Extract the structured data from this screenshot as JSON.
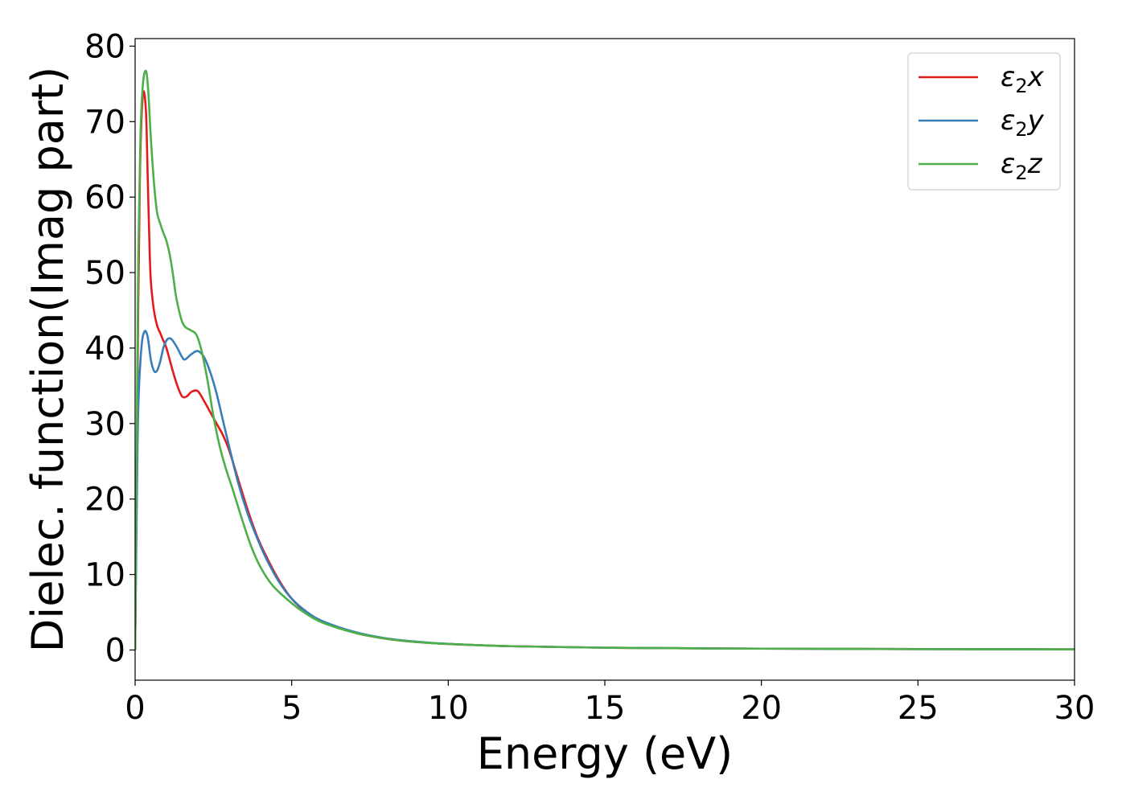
{
  "chart_data": {
    "type": "line",
    "xlabel": "Energy (eV)",
    "ylabel": "Dielec. function(Imag part)",
    "xlim": [
      0,
      30
    ],
    "ylim": [
      -4,
      81
    ],
    "xticks": [
      "0",
      "5",
      "10",
      "15",
      "20",
      "25",
      "30"
    ],
    "yticks": [
      "0",
      "10",
      "20",
      "30",
      "40",
      "50",
      "60",
      "70",
      "80"
    ],
    "grid": false,
    "legend_position": "top-right",
    "series": [
      {
        "name": "ε₂x",
        "legend_main": "ε",
        "legend_sub": "2",
        "legend_var": "x",
        "color": "#e41a1c",
        "points": [
          [
            0,
            0
          ],
          [
            0.05,
            22
          ],
          [
            0.1,
            46
          ],
          [
            0.15,
            62
          ],
          [
            0.2,
            70
          ],
          [
            0.27,
            74
          ],
          [
            0.35,
            71
          ],
          [
            0.4,
            63
          ],
          [
            0.45,
            55
          ],
          [
            0.5,
            49
          ],
          [
            0.6,
            45
          ],
          [
            0.7,
            43
          ],
          [
            0.8,
            42
          ],
          [
            0.9,
            41
          ],
          [
            1.0,
            40
          ],
          [
            1.2,
            37
          ],
          [
            1.35,
            35
          ],
          [
            1.5,
            33.6
          ],
          [
            1.65,
            33.6
          ],
          [
            1.8,
            34.2
          ],
          [
            2.0,
            34.3
          ],
          [
            2.2,
            33
          ],
          [
            2.4,
            31.5
          ],
          [
            2.6,
            30
          ],
          [
            2.8,
            28.5
          ],
          [
            3.0,
            26.5
          ],
          [
            3.3,
            22.5
          ],
          [
            3.6,
            18.5
          ],
          [
            3.9,
            15
          ],
          [
            4.2,
            12.3
          ],
          [
            4.6,
            9.2
          ],
          [
            5.0,
            6.8
          ],
          [
            5.5,
            4.9
          ],
          [
            6.0,
            3.7
          ],
          [
            7.0,
            2.3
          ],
          [
            8.0,
            1.5
          ],
          [
            9.0,
            1.05
          ],
          [
            10.0,
            0.8
          ],
          [
            12.0,
            0.5
          ],
          [
            15.0,
            0.3
          ],
          [
            20.0,
            0.18
          ],
          [
            25.0,
            0.12
          ],
          [
            30.0,
            0.08
          ]
        ]
      },
      {
        "name": "ε₂y",
        "legend_main": "ε",
        "legend_sub": "2",
        "legend_var": "y",
        "color": "#377eb8",
        "points": [
          [
            0,
            0
          ],
          [
            0.05,
            18
          ],
          [
            0.1,
            32
          ],
          [
            0.2,
            40
          ],
          [
            0.3,
            42.2
          ],
          [
            0.4,
            41.5
          ],
          [
            0.5,
            38.5
          ],
          [
            0.6,
            37
          ],
          [
            0.7,
            37
          ],
          [
            0.8,
            38.2
          ],
          [
            0.9,
            40
          ],
          [
            1.0,
            41
          ],
          [
            1.1,
            41.3
          ],
          [
            1.2,
            41
          ],
          [
            1.35,
            40
          ],
          [
            1.5,
            38.8
          ],
          [
            1.6,
            38.5
          ],
          [
            1.8,
            39.2
          ],
          [
            2.0,
            39.6
          ],
          [
            2.2,
            38.8
          ],
          [
            2.4,
            36.8
          ],
          [
            2.6,
            34
          ],
          [
            2.8,
            30.5
          ],
          [
            3.0,
            27
          ],
          [
            3.3,
            22
          ],
          [
            3.6,
            18
          ],
          [
            3.9,
            14.8
          ],
          [
            4.2,
            12
          ],
          [
            4.6,
            9
          ],
          [
            5.0,
            6.8
          ],
          [
            5.5,
            5
          ],
          [
            6.0,
            3.8
          ],
          [
            7.0,
            2.4
          ],
          [
            8.0,
            1.55
          ],
          [
            9.0,
            1.1
          ],
          [
            10.0,
            0.82
          ],
          [
            12.0,
            0.5
          ],
          [
            15.0,
            0.3
          ],
          [
            20.0,
            0.18
          ],
          [
            25.0,
            0.12
          ],
          [
            30.0,
            0.08
          ]
        ]
      },
      {
        "name": "ε₂z",
        "legend_main": "ε",
        "legend_sub": "2",
        "legend_var": "z",
        "color": "#4daf4a",
        "points": [
          [
            0,
            0
          ],
          [
            0.05,
            25
          ],
          [
            0.1,
            52
          ],
          [
            0.17,
            68
          ],
          [
            0.25,
            75
          ],
          [
            0.35,
            76.7
          ],
          [
            0.42,
            74
          ],
          [
            0.5,
            68
          ],
          [
            0.6,
            62
          ],
          [
            0.7,
            58
          ],
          [
            0.8,
            56.5
          ],
          [
            0.9,
            55.3
          ],
          [
            1.0,
            54.2
          ],
          [
            1.1,
            52.5
          ],
          [
            1.2,
            50
          ],
          [
            1.3,
            47
          ],
          [
            1.4,
            45
          ],
          [
            1.5,
            43.5
          ],
          [
            1.6,
            42.8
          ],
          [
            1.8,
            42.3
          ],
          [
            1.95,
            41.8
          ],
          [
            2.1,
            40
          ],
          [
            2.3,
            36
          ],
          [
            2.5,
            31
          ],
          [
            2.7,
            27
          ],
          [
            2.9,
            24
          ],
          [
            3.1,
            21.5
          ],
          [
            3.4,
            17.5
          ],
          [
            3.7,
            13.8
          ],
          [
            4.0,
            11
          ],
          [
            4.4,
            8.5
          ],
          [
            5.0,
            6.2
          ],
          [
            5.5,
            4.7
          ],
          [
            6.0,
            3.6
          ],
          [
            7.0,
            2.3
          ],
          [
            8.0,
            1.5
          ],
          [
            9.0,
            1.05
          ],
          [
            10.0,
            0.8
          ],
          [
            12.0,
            0.5
          ],
          [
            15.0,
            0.3
          ],
          [
            20.0,
            0.18
          ],
          [
            25.0,
            0.12
          ],
          [
            30.0,
            0.08
          ]
        ]
      }
    ]
  }
}
